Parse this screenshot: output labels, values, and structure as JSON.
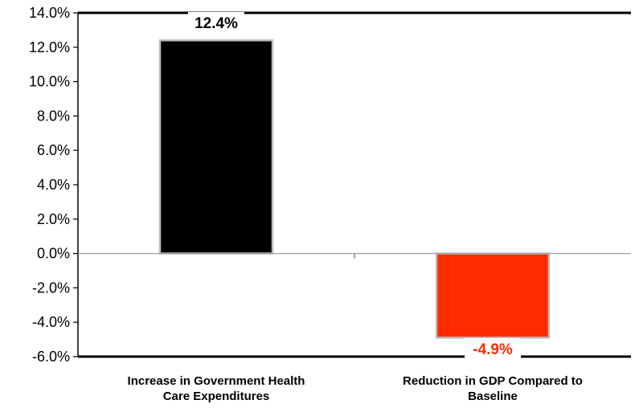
{
  "chart_data": {
    "type": "bar",
    "categories": [
      [
        "Increase in Government  Health",
        "Care Expenditures"
      ],
      [
        "Reduction in GDP Compared to",
        "Baseline"
      ]
    ],
    "values": [
      12.4,
      -4.9
    ],
    "data_labels": [
      "12.4%",
      "-4.9%"
    ],
    "bar_colors": [
      "#000000",
      "#ff2a00"
    ],
    "data_label_colors": [
      "#000000",
      "#ff2a00"
    ],
    "ylim": [
      -6.0,
      14.0
    ],
    "yticks": [
      14.0,
      12.0,
      10.0,
      8.0,
      6.0,
      4.0,
      2.0,
      0.0,
      -2.0,
      -4.0,
      -6.0
    ],
    "ytick_labels": [
      "14.0%",
      "12.0%",
      "10.0%",
      "8.0%",
      "6.0%",
      "4.0%",
      "2.0%",
      "0.0%",
      "-2.0%",
      "-4.0%",
      "-6.0%"
    ],
    "title": "",
    "xlabel": "",
    "ylabel": "",
    "grid": false,
    "legend": "none"
  }
}
